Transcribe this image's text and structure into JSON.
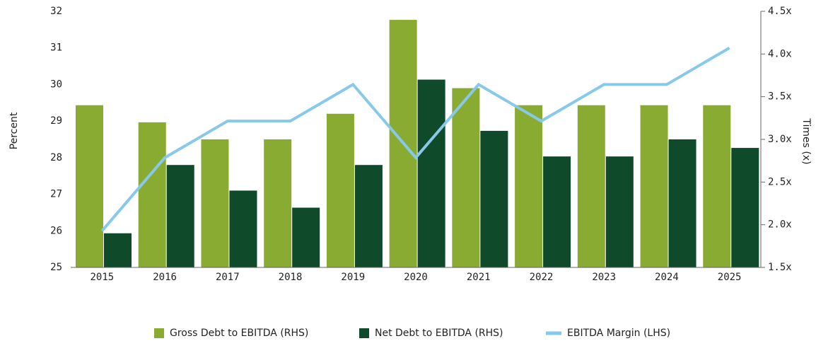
{
  "chart_data": {
    "type": "bar_line",
    "categories": [
      "2015",
      "2016",
      "2017",
      "2018",
      "2019",
      "2020",
      "2021",
      "2022",
      "2023",
      "2024",
      "2025"
    ],
    "series": [
      {
        "name": "Gross Debt to EBITDA (RHS)",
        "color": "#8aab32",
        "axis": "y2",
        "values": [
          3.4,
          3.2,
          3.0,
          3.0,
          3.3,
          4.4,
          3.6,
          3.4,
          3.4,
          3.4,
          3.4
        ]
      },
      {
        "name": "Net Debt to EBITDA (RHS)",
        "color": "#0f4a2a",
        "axis": "y2",
        "values": [
          1.9,
          2.7,
          2.4,
          2.2,
          2.7,
          3.7,
          3.1,
          2.8,
          2.8,
          3.0,
          2.9
        ]
      },
      {
        "name": "EBITDA Margin (LHS)",
        "color": "#86c9ea",
        "axis": "y",
        "values": [
          26,
          28,
          29,
          29,
          30,
          28,
          30,
          29,
          30,
          30,
          31
        ]
      }
    ],
    "ylabel": "Percent",
    "y2label": "Times (x)",
    "ylim": [
      25,
      32
    ],
    "yticks": [
      25,
      26,
      27,
      28,
      29,
      30,
      31,
      32
    ],
    "y2lim": [
      1.5,
      4.5
    ],
    "y2ticks": [
      {
        "value": 1.5,
        "label": "1.5x"
      },
      {
        "value": 2.0,
        "label": "2.0x"
      },
      {
        "value": 2.5,
        "label": "2.5x"
      },
      {
        "value": 3.0,
        "label": "3.0x"
      },
      {
        "value": 3.5,
        "label": "3.5x"
      },
      {
        "value": 4.0,
        "label": "4.0x"
      },
      {
        "value": 4.5,
        "label": "4.5x"
      }
    ],
    "legend": "bottom",
    "grid": false
  }
}
